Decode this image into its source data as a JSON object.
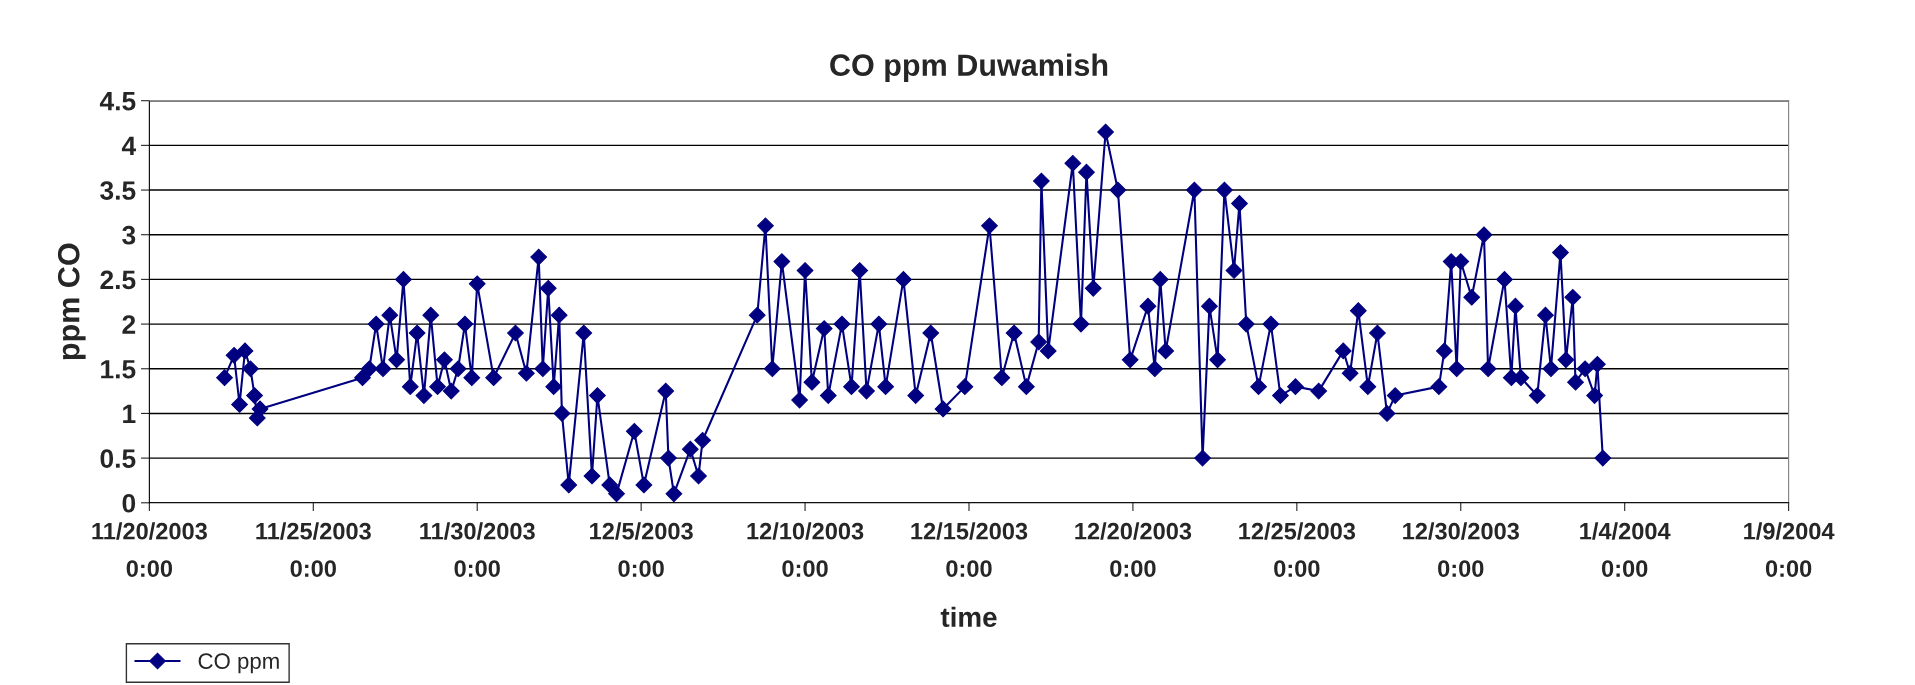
{
  "chart_data": {
    "type": "line",
    "title": "CO ppm Duwamish",
    "xlabel": "time",
    "ylabel": "ppm CO",
    "xlim": [
      "2003-11-20",
      "2004-01-09"
    ],
    "xticks": [
      {
        "value": "2003-11-20",
        "label": "11/20/2003\n0:00"
      },
      {
        "value": "2003-11-25",
        "label": "11/25/2003\n0:00"
      },
      {
        "value": "2003-11-30",
        "label": "11/30/2003\n0:00"
      },
      {
        "value": "2003-12-05",
        "label": "12/5/2003\n0:00"
      },
      {
        "value": "2003-12-10",
        "label": "12/10/2003\n0:00"
      },
      {
        "value": "2003-12-15",
        "label": "12/15/2003\n0:00"
      },
      {
        "value": "2003-12-20",
        "label": "12/20/2003\n0:00"
      },
      {
        "value": "2003-12-25",
        "label": "12/25/2003\n0:00"
      },
      {
        "value": "2003-12-30",
        "label": "12/30/2003\n0:00"
      },
      {
        "value": "2004-01-04",
        "label": "1/4/2004\n0:00"
      },
      {
        "value": "2004-01-09",
        "label": "1/9/2004\n0:00"
      }
    ],
    "ylim": [
      0,
      4.5
    ],
    "yticks": [
      0,
      0.5,
      1,
      1.5,
      2,
      2.5,
      3,
      3.5,
      4,
      4.5
    ],
    "grid": "y",
    "legend": "bottom left",
    "marker": "diamond",
    "line_style": "solid",
    "x": [
      "2003-11-22T07:00",
      "2003-11-22T14:00",
      "2003-11-22T18:00",
      "2003-11-22T22:00",
      "2003-11-23T02:00",
      "2003-11-23T05:00",
      "2003-11-23T07:00",
      "2003-11-23T09:00",
      "2003-11-26T12:00",
      "2003-11-26T17:00",
      "2003-11-26T22:00",
      "2003-11-27T03:00",
      "2003-11-27T08:00",
      "2003-11-27T13:00",
      "2003-11-27T18:00",
      "2003-11-27T23:00",
      "2003-11-28T04:00",
      "2003-11-28T09:00",
      "2003-11-28T14:00",
      "2003-11-28T19:00",
      "2003-11-29T00:00",
      "2003-11-29T05:00",
      "2003-11-29T10:00",
      "2003-11-29T15:00",
      "2003-11-29T20:00",
      "2003-11-30T00:00",
      "2003-11-30T12:00",
      "2003-12-01T04:00",
      "2003-12-01T12:00",
      "2003-12-01T21:00",
      "2003-12-02T00:00",
      "2003-12-02T04:00",
      "2003-12-02T08:00",
      "2003-12-02T12:00",
      "2003-12-02T14:00",
      "2003-12-02T19:00",
      "2003-12-03T06:00",
      "2003-12-03T12:00",
      "2003-12-03T16:00",
      "2003-12-04T01:00",
      "2003-12-04T06:00",
      "2003-12-04T19:00",
      "2003-12-05T02:00",
      "2003-12-05T18:00",
      "2003-12-05T20:00",
      "2003-12-06T00:00",
      "2003-12-06T12:00",
      "2003-12-06T18:00",
      "2003-12-06T21:00",
      "2003-12-08T13:00",
      "2003-12-08T19:00",
      "2003-12-09T00:00",
      "2003-12-09T07:00",
      "2003-12-09T20:00",
      "2003-12-10T00:00",
      "2003-12-10T05:00",
      "2003-12-10T14:00",
      "2003-12-10T17:00",
      "2003-12-11T03:00",
      "2003-12-11T10:00",
      "2003-12-11T16:00",
      "2003-12-11T21:00",
      "2003-12-12T06:00",
      "2003-12-12T11:00",
      "2003-12-13T00:00",
      "2003-12-13T09:00",
      "2003-12-13T20:00",
      "2003-12-14T05:00",
      "2003-12-14T21:00",
      "2003-12-15T15:00",
      "2003-12-16T00:00",
      "2003-12-16T09:00",
      "2003-12-16T18:00",
      "2003-12-17T03:00",
      "2003-12-17T05:00",
      "2003-12-17T10:00",
      "2003-12-18T04:00",
      "2003-12-18T10:00",
      "2003-12-18T14:00",
      "2003-12-18T19:00",
      "2003-12-19T04:00",
      "2003-12-19T13:00",
      "2003-12-19T22:00",
      "2003-12-20T11:00",
      "2003-12-20T16:00",
      "2003-12-20T20:00",
      "2003-12-21T00:00",
      "2003-12-21T21:00",
      "2003-12-22T03:00",
      "2003-12-22T08:00",
      "2003-12-22T14:00",
      "2003-12-22T19:00",
      "2003-12-23T02:00",
      "2003-12-23T06:00",
      "2003-12-23T11:00",
      "2003-12-23T20:00",
      "2003-12-24T05:00",
      "2003-12-24T12:00",
      "2003-12-24T23:00",
      "2003-12-25T16:00",
      "2003-12-26T10:00",
      "2003-12-26T15:00",
      "2003-12-26T21:00",
      "2003-12-27T04:00",
      "2003-12-27T11:00",
      "2003-12-27T18:00",
      "2003-12-28T00:00",
      "2003-12-29T08:00",
      "2003-12-29T12:00",
      "2003-12-29T17:00",
      "2003-12-29T21:00",
      "2003-12-30T00:00",
      "2003-12-30T08:00",
      "2003-12-30T17:00",
      "2003-12-30T20:00",
      "2003-12-31T08:00",
      "2003-12-31T13:00",
      "2003-12-31T16:00",
      "2003-12-31T20:00",
      "2004-01-01T08:00",
      "2004-01-01T14:00",
      "2004-01-01T18:00",
      "2004-01-02T01:00",
      "2004-01-02T05:00",
      "2004-01-02T10:00",
      "2004-01-02T12:00",
      "2004-01-02T19:00",
      "2004-01-03T02:00",
      "2004-01-03T04:00",
      "2004-01-03T08:00"
    ],
    "series": [
      {
        "name": "CO ppm",
        "color": "#000080",
        "values": [
          1.4,
          1.65,
          1.1,
          1.7,
          1.5,
          1.2,
          0.95,
          1.05,
          1.4,
          1.5,
          2.0,
          1.5,
          2.1,
          1.6,
          2.5,
          1.3,
          1.9,
          1.2,
          2.1,
          1.3,
          1.6,
          1.25,
          1.5,
          2.0,
          1.4,
          2.45,
          1.4,
          1.9,
          1.45,
          2.75,
          1.5,
          2.4,
          1.3,
          2.1,
          1.0,
          0.2,
          1.9,
          0.3,
          1.2,
          0.2,
          0.1,
          0.8,
          0.2,
          1.25,
          0.5,
          0.1,
          0.6,
          0.3,
          0.7,
          2.1,
          3.1,
          1.5,
          2.7,
          1.15,
          2.6,
          1.35,
          1.95,
          1.2,
          2.0,
          1.3,
          2.6,
          1.25,
          2.0,
          1.3,
          2.5,
          1.2,
          1.9,
          1.05,
          1.3,
          3.1,
          1.4,
          1.9,
          1.3,
          1.8,
          3.6,
          1.7,
          3.8,
          2.0,
          3.7,
          2.4,
          4.15,
          3.5,
          1.6,
          2.2,
          1.5,
          2.5,
          1.7,
          3.5,
          0.5,
          2.2,
          1.6,
          3.5,
          2.6,
          3.35,
          2.0,
          1.3,
          2.0,
          1.2,
          1.3,
          1.25,
          1.7,
          1.45,
          2.15,
          1.3,
          1.9,
          1.0,
          1.2,
          1.3,
          1.7,
          2.7,
          1.5,
          2.7,
          2.3,
          3.0,
          1.5,
          2.5,
          1.4,
          2.2,
          1.4,
          1.2,
          2.1,
          1.5,
          2.8,
          1.6,
          2.3,
          1.35,
          1.5,
          1.2,
          1.55,
          0.5
        ]
      }
    ]
  }
}
